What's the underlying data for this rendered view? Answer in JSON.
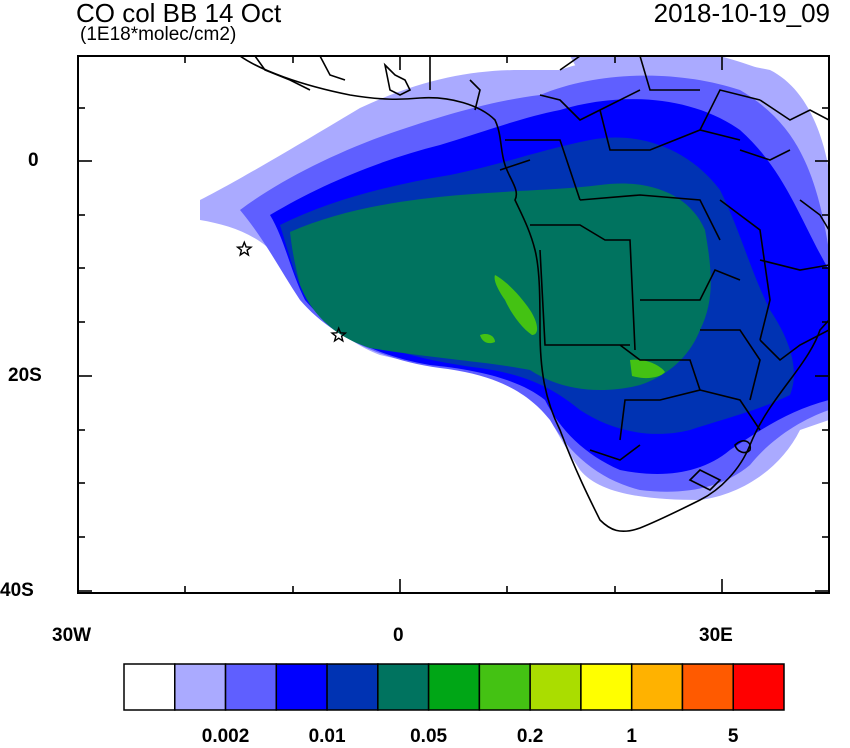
{
  "title": "CO col BB 14 Oct",
  "units": "(1E18*molec/cm2)",
  "timestamp": "2018-10-19_09",
  "y_axis_labels": [
    "0",
    "20S",
    "40S"
  ],
  "x_axis_labels": [
    "30W",
    "0",
    "30E"
  ],
  "colorbar": {
    "colors": [
      "#ffffff",
      "#aaaaff",
      "#5f5fff",
      "#0000ff",
      "#0033b3",
      "#00735f",
      "#00a616",
      "#44c213",
      "#aadd00",
      "#ffff00",
      "#ffb200",
      "#ff5a00",
      "#ff0000"
    ],
    "labels": [
      "0.002",
      "0.01",
      "0.05",
      "0.2",
      "1",
      "5"
    ]
  },
  "markers": [
    {
      "name": "star-marker-1",
      "lon": -14.5,
      "lat": -8
    },
    {
      "name": "star-marker-2",
      "lon": -5.7,
      "lat": -16
    }
  ]
}
